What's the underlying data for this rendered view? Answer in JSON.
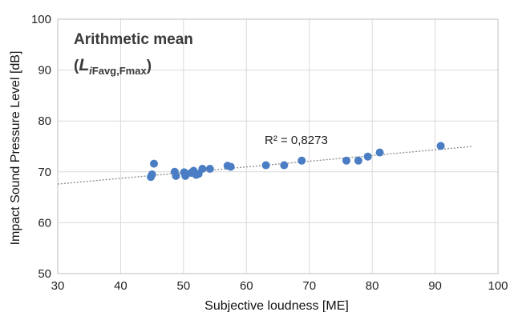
{
  "chart_data": {
    "type": "scatter",
    "title": "Arithmetic mean",
    "subtitle": {
      "open": "(",
      "symbol": "L",
      "sub_i": "i",
      "sub_rest": "Favg,Fmax",
      "close": ")"
    },
    "xlabel": "Subjective loudness [ME]",
    "ylabel": "Impact Sound Pressure Level [dB]",
    "xlim": [
      30,
      100
    ],
    "ylim": [
      50,
      100
    ],
    "x_ticks": [
      "30",
      "40",
      "50",
      "60",
      "70",
      "80",
      "90",
      "100"
    ],
    "y_ticks": [
      "50",
      "60",
      "70",
      "80",
      "90",
      "100"
    ],
    "grid": true,
    "points": [
      {
        "x": 44.8,
        "y": 69.0
      },
      {
        "x": 45.0,
        "y": 69.5
      },
      {
        "x": 45.3,
        "y": 71.6
      },
      {
        "x": 48.6,
        "y": 70.0
      },
      {
        "x": 48.8,
        "y": 69.2
      },
      {
        "x": 50.1,
        "y": 69.9
      },
      {
        "x": 50.3,
        "y": 69.2
      },
      {
        "x": 51.2,
        "y": 69.8
      },
      {
        "x": 51.6,
        "y": 70.2
      },
      {
        "x": 52.0,
        "y": 69.4
      },
      {
        "x": 52.4,
        "y": 69.6
      },
      {
        "x": 53.0,
        "y": 70.6
      },
      {
        "x": 54.2,
        "y": 70.6
      },
      {
        "x": 57.0,
        "y": 71.2
      },
      {
        "x": 57.5,
        "y": 71.0
      },
      {
        "x": 63.1,
        "y": 71.3
      },
      {
        "x": 66.0,
        "y": 71.3
      },
      {
        "x": 68.8,
        "y": 72.2
      },
      {
        "x": 75.9,
        "y": 72.2
      },
      {
        "x": 77.8,
        "y": 72.2
      },
      {
        "x": 79.3,
        "y": 73.0
      },
      {
        "x": 81.2,
        "y": 73.8
      },
      {
        "x": 90.9,
        "y": 75.1
      }
    ],
    "trendline": {
      "type": "linear",
      "x": [
        30,
        96
      ],
      "y": [
        67.6,
        75.0
      ],
      "style": "dotted"
    },
    "annotation": "R² = 0,8273",
    "colors": {
      "points": "#4a7dc4",
      "trendline": "#8c8c8c",
      "grid": "#d9d9d9"
    }
  }
}
